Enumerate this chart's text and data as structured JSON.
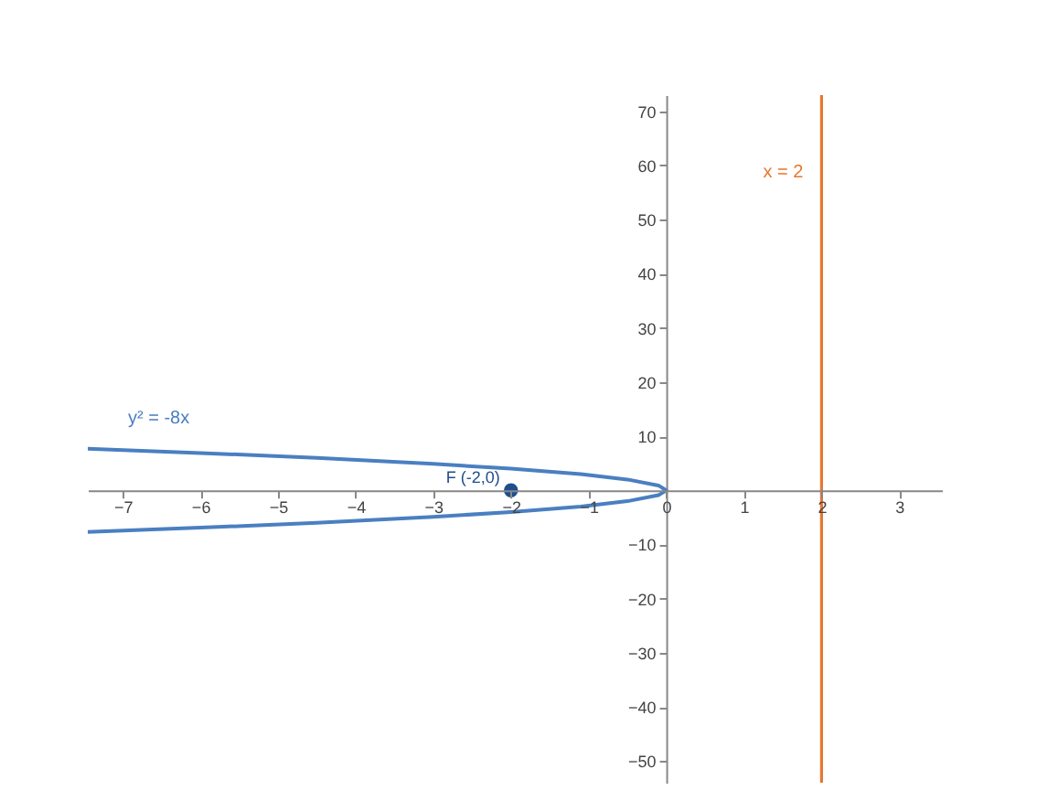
{
  "chart_data": {
    "type": "line",
    "xlim": [
      -7.45,
      3.55
    ],
    "ylim": [
      -54,
      73
    ],
    "xticks": [
      -7,
      -6,
      -5,
      -4,
      -3,
      -2,
      -1,
      0,
      1,
      2,
      3
    ],
    "yticks": [
      -50,
      -40,
      -30,
      -20,
      -10,
      10,
      20,
      30,
      40,
      50,
      60,
      70
    ],
    "grid": false,
    "series": [
      {
        "name": "y² = -8x",
        "color": "#4a7fc1",
        "x": [
          -7.45,
          -6,
          -4.5,
          -3,
          -2,
          -1.1,
          -0.5,
          -0.1,
          0,
          -0.1,
          -0.5,
          -1.1,
          -2,
          -3,
          -4.5,
          -6,
          -7.45
        ],
        "values": [
          7.7,
          6.9,
          6,
          4.9,
          4,
          3,
          2,
          0.9,
          0,
          -0.9,
          -2,
          -3,
          -4,
          -4.9,
          -6,
          -6.9,
          -7.7
        ]
      },
      {
        "name": "F (-2,0)",
        "type": "scatter",
        "color": "#1f4e8c",
        "x": [
          -2
        ],
        "values": [
          0
        ]
      }
    ],
    "ref_lines": [
      {
        "axis": "x",
        "value": 2,
        "label": "x = 2",
        "color": "#e8772e"
      }
    ]
  }
}
